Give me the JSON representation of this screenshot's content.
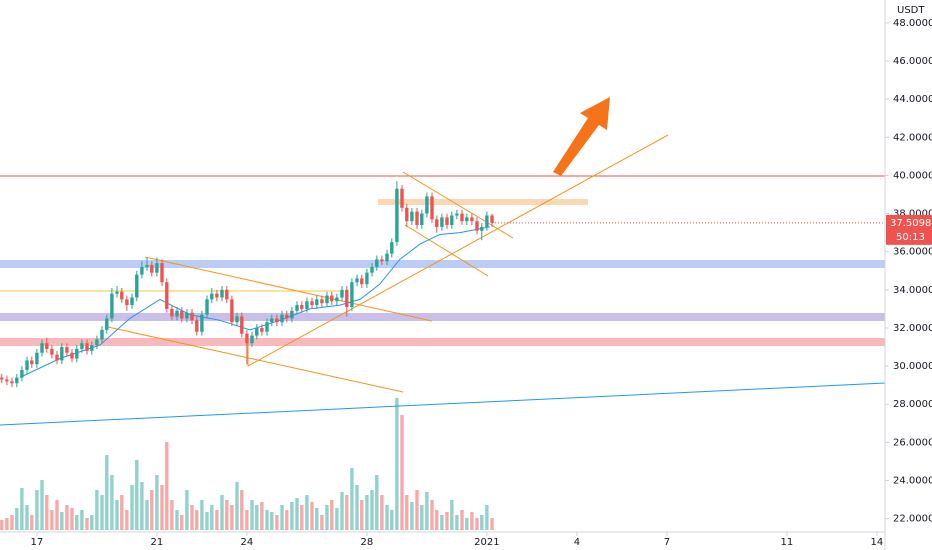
{
  "chart_data": {
    "type": "candlestick",
    "currency": "USDT",
    "x": [
      15.83,
      16,
      16.17,
      16.33,
      16.5,
      16.67,
      16.83,
      17,
      17.17,
      17.33,
      17.5,
      17.67,
      17.83,
      18,
      18.17,
      18.33,
      18.5,
      18.67,
      18.83,
      19,
      19.17,
      19.33,
      19.5,
      19.67,
      19.83,
      20,
      20.17,
      20.33,
      20.5,
      20.67,
      20.83,
      21,
      21.17,
      21.33,
      21.5,
      21.67,
      21.83,
      22,
      22.17,
      22.33,
      22.5,
      22.67,
      22.83,
      23,
      23.17,
      23.33,
      23.5,
      23.67,
      23.83,
      24,
      24.17,
      24.33,
      24.5,
      24.67,
      24.83,
      25,
      25.17,
      25.33,
      25.5,
      25.67,
      25.83,
      26,
      26.17,
      26.33,
      26.5,
      26.67,
      26.83,
      27,
      27.17,
      27.33,
      27.5,
      27.67,
      27.83,
      28,
      28.17,
      28.33,
      28.5,
      28.67,
      28.83,
      29,
      29.17,
      29.33,
      29.5,
      29.67,
      29.83,
      30,
      30.17,
      30.33,
      30.5,
      30.67,
      30.83,
      31,
      31.17,
      31.33,
      31.5,
      31.67,
      31.83,
      32,
      32.17
    ],
    "open": [
      29.4,
      29.3,
      29.2,
      29.1,
      29.4,
      29.8,
      30.3,
      30.1,
      30.7,
      31.2,
      30.9,
      30.6,
      30.3,
      31.0,
      30.7,
      30.4,
      30.9,
      31.2,
      30.8,
      31.1,
      31.4,
      31.9,
      32.5,
      33.8,
      33.9,
      33.5,
      33.2,
      33.6,
      34.8,
      35.2,
      35.3,
      34.9,
      35.4,
      34.4,
      33.0,
      32.6,
      32.9,
      32.5,
      32.8,
      32.4,
      31.8,
      32.7,
      33.5,
      33.8,
      33.6,
      34.0,
      33.5,
      32.3,
      32.6,
      31.7,
      31.2,
      31.6,
      32.0,
      31.8,
      32.3,
      32.5,
      32.3,
      32.7,
      32.5,
      32.9,
      33.2,
      33.0,
      33.4,
      33.2,
      33.5,
      33.3,
      33.7,
      33.4,
      33.6,
      34.0,
      33.1,
      34.4,
      34.6,
      34.3,
      34.9,
      35.2,
      35.6,
      35.5,
      35.9,
      36.5,
      39.3,
      38.3,
      37.6,
      38.1,
      37.4,
      38.0,
      38.9,
      37.7,
      37.3,
      37.8,
      37.4,
      37.9,
      38.0,
      37.6,
      37.8,
      37.6,
      37.1,
      37.3,
      37.9
    ],
    "high": [
      29.6,
      29.5,
      29.4,
      29.6,
      30.0,
      30.5,
      30.5,
      30.9,
      31.4,
      31.5,
      31.1,
      30.8,
      31.2,
      31.2,
      30.9,
      31.1,
      31.4,
      31.4,
      31.3,
      31.6,
      32.1,
      32.7,
      34.1,
      34.2,
      34.1,
      33.7,
      33.8,
      35.0,
      35.5,
      35.7,
      35.5,
      35.7,
      35.6,
      34.6,
      33.2,
      33.1,
      33.1,
      33.0,
      33.0,
      32.6,
      32.9,
      33.7,
      34.1,
      34.0,
      34.2,
      34.2,
      33.7,
      32.8,
      32.8,
      31.9,
      31.8,
      32.2,
      32.2,
      32.5,
      32.7,
      32.7,
      32.9,
      32.9,
      33.1,
      33.4,
      33.4,
      33.6,
      33.6,
      33.7,
      33.7,
      33.9,
      33.9,
      33.8,
      34.2,
      34.2,
      34.6,
      34.8,
      34.8,
      35.1,
      35.4,
      35.8,
      35.8,
      36.1,
      36.7,
      39.7,
      39.5,
      38.5,
      38.3,
      38.3,
      38.2,
      39.1,
      39.1,
      37.9,
      38.0,
      38.0,
      38.1,
      38.2,
      38.2,
      38.0,
      38.0,
      37.8,
      37.5,
      38.1,
      38.0
    ],
    "low": [
      29.1,
      29.0,
      28.9,
      28.9,
      29.2,
      29.6,
      29.9,
      29.9,
      30.5,
      30.7,
      30.4,
      30.1,
      30.1,
      30.5,
      30.2,
      30.2,
      30.7,
      30.6,
      30.6,
      30.9,
      31.2,
      31.7,
      32.3,
      33.6,
      33.3,
      32.9,
      33.0,
      33.4,
      34.6,
      35.0,
      34.7,
      34.7,
      34.2,
      32.8,
      32.4,
      32.4,
      32.3,
      32.3,
      32.2,
      31.6,
      31.6,
      32.5,
      33.3,
      33.4,
      33.4,
      33.3,
      32.1,
      32.1,
      31.5,
      30.1,
      31.0,
      31.4,
      31.6,
      31.6,
      32.1,
      32.1,
      32.1,
      32.3,
      32.3,
      32.7,
      32.8,
      32.8,
      33.0,
      33.0,
      33.1,
      33.1,
      33.2,
      33.2,
      33.4,
      32.6,
      32.9,
      34.2,
      34.1,
      34.1,
      34.7,
      35.0,
      35.3,
      35.3,
      35.7,
      36.3,
      38.1,
      37.3,
      37.4,
      37.2,
      37.2,
      37.8,
      37.5,
      37.0,
      37.1,
      37.2,
      37.2,
      37.7,
      37.4,
      37.4,
      37.4,
      36.9,
      36.6,
      37.1,
      37.3
    ],
    "close": [
      29.3,
      29.2,
      29.1,
      29.4,
      29.8,
      30.3,
      30.1,
      30.7,
      31.2,
      30.9,
      30.6,
      30.3,
      31.0,
      30.7,
      30.4,
      30.9,
      31.2,
      30.8,
      31.1,
      31.4,
      31.9,
      32.5,
      33.8,
      33.9,
      33.5,
      33.2,
      33.6,
      34.8,
      35.2,
      35.3,
      34.9,
      35.4,
      34.4,
      33.0,
      32.6,
      32.9,
      32.5,
      32.8,
      32.4,
      31.8,
      32.7,
      33.5,
      33.8,
      33.6,
      34.0,
      33.5,
      32.3,
      32.6,
      31.7,
      31.2,
      31.6,
      32.0,
      31.8,
      32.3,
      32.5,
      32.3,
      32.7,
      32.5,
      32.9,
      33.2,
      33.0,
      33.4,
      33.2,
      33.5,
      33.3,
      33.7,
      33.4,
      33.6,
      34.0,
      33.1,
      34.4,
      34.6,
      34.3,
      34.9,
      35.2,
      35.6,
      35.5,
      35.9,
      36.5,
      39.3,
      38.3,
      37.6,
      38.1,
      37.4,
      38.0,
      38.9,
      37.7,
      37.3,
      37.8,
      37.4,
      37.9,
      38.0,
      37.6,
      37.8,
      37.6,
      37.1,
      37.3,
      37.9,
      37.5098
    ],
    "volume": [
      10,
      12,
      15,
      22,
      42,
      25,
      15,
      40,
      50,
      35,
      20,
      30,
      18,
      25,
      22,
      15,
      20,
      12,
      15,
      40,
      35,
      75,
      55,
      30,
      35,
      20,
      45,
      70,
      48,
      30,
      40,
      55,
      45,
      88,
      30,
      20,
      15,
      40,
      25,
      20,
      30,
      18,
      25,
      20,
      35,
      30,
      25,
      48,
      40,
      20,
      30,
      25,
      28,
      20,
      18,
      15,
      25,
      20,
      28,
      32,
      25,
      35,
      28,
      22,
      15,
      25,
      30,
      22,
      38,
      35,
      62,
      45,
      30,
      35,
      40,
      55,
      35,
      25,
      20,
      132,
      115,
      35,
      28,
      40,
      25,
      38,
      30,
      20,
      15,
      18,
      30,
      15,
      20,
      12,
      18,
      12,
      15,
      25,
      12
    ],
    "ma": {
      "x": [
        16.43,
        17.77,
        19.1,
        20.1,
        21.1,
        22.1,
        23.1,
        24.1,
        25.1,
        26.1,
        27.1,
        27.77,
        28.43,
        29.1,
        29.77,
        30.43,
        31.1,
        32.1
      ],
      "values": [
        29.4,
        30.4,
        31.1,
        32.5,
        33.5,
        32.7,
        32.4,
        31.9,
        32.4,
        33.0,
        33.2,
        33.5,
        34.3,
        35.6,
        36.4,
        36.9,
        37.0,
        37.3
      ],
      "color": "#2196f3"
    },
    "xlim": [
      15.77,
      45.27
    ],
    "xticks": [
      17,
      21,
      24,
      28,
      {
        "value": 32,
        "label": "2021"
      },
      {
        "value": 35,
        "label": "4"
      },
      {
        "value": 38,
        "label": "7"
      },
      {
        "value": 42,
        "label": "11"
      },
      {
        "value": 45,
        "label": "14"
      }
    ],
    "ylim": [
      21.3,
      49.2
    ],
    "yticks": [
      {
        "value": 22,
        "label": "22.0000"
      },
      {
        "value": 24,
        "label": "24.0000"
      },
      {
        "value": 26,
        "label": "26.0000"
      },
      {
        "value": 28,
        "label": "28.0000"
      },
      {
        "value": 30,
        "label": "30.0000"
      },
      {
        "value": 32,
        "label": "32.0000"
      },
      {
        "value": 34,
        "label": "34.0000"
      },
      {
        "value": 36,
        "label": "36.0000"
      },
      {
        "value": 38,
        "label": "38.0000"
      },
      {
        "value": 40,
        "label": "40.0000"
      },
      {
        "value": 42,
        "label": "42.0000"
      },
      {
        "value": 44,
        "label": "44.0000"
      },
      {
        "value": 46,
        "label": "46.0000"
      },
      {
        "value": 48,
        "label": "48.0000"
      }
    ],
    "last_price_label": "37.5098",
    "countdown": "50:13",
    "up_color": "#26a69a",
    "down_color": "#ef5350"
  }
}
